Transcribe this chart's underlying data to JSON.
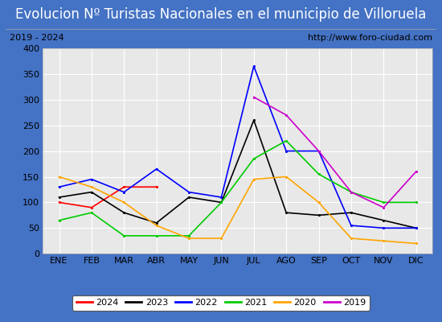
{
  "title": "Evolucion Nº Turistas Nacionales en el municipio de Villoruela",
  "subtitle_left": "2019 - 2024",
  "subtitle_right": "http://www.foro-ciudad.com",
  "months": [
    "ENE",
    "FEB",
    "MAR",
    "ABR",
    "MAY",
    "JUN",
    "JUL",
    "AGO",
    "SEP",
    "OCT",
    "NOV",
    "DIC"
  ],
  "ylim": [
    0,
    400
  ],
  "yticks": [
    0,
    50,
    100,
    150,
    200,
    250,
    300,
    350,
    400
  ],
  "series": {
    "2024": {
      "color": "#ff0000",
      "data": [
        100,
        90,
        130,
        130,
        null,
        null,
        null,
        null,
        null,
        null,
        null,
        null
      ]
    },
    "2023": {
      "color": "#000000",
      "data": [
        110,
        120,
        80,
        60,
        110,
        100,
        260,
        80,
        75,
        80,
        65,
        50
      ]
    },
    "2022": {
      "color": "#0000ff",
      "data": [
        130,
        145,
        120,
        165,
        120,
        110,
        365,
        200,
        200,
        55,
        50,
        50
      ]
    },
    "2021": {
      "color": "#00cc00",
      "data": [
        65,
        80,
        35,
        35,
        35,
        100,
        185,
        220,
        155,
        120,
        100,
        100
      ]
    },
    "2020": {
      "color": "#ffa500",
      "data": [
        150,
        130,
        100,
        55,
        30,
        30,
        145,
        150,
        100,
        30,
        25,
        20
      ]
    },
    "2019": {
      "color": "#cc00cc",
      "data": [
        null,
        null,
        null,
        null,
        null,
        null,
        305,
        270,
        200,
        120,
        90,
        160
      ]
    }
  },
  "title_bg": "#4472c4",
  "title_color": "#ffffff",
  "subtitle_bg": "#ffffff",
  "subtitle_color": "#000000",
  "outer_border_color": "#4472c4",
  "plot_bg": "#e8e8e8",
  "grid_color": "#ffffff",
  "title_fontsize": 12,
  "subtitle_fontsize": 8,
  "tick_fontsize": 8,
  "legend_fontsize": 8,
  "legend_order": [
    "2024",
    "2023",
    "2022",
    "2021",
    "2020",
    "2019"
  ]
}
